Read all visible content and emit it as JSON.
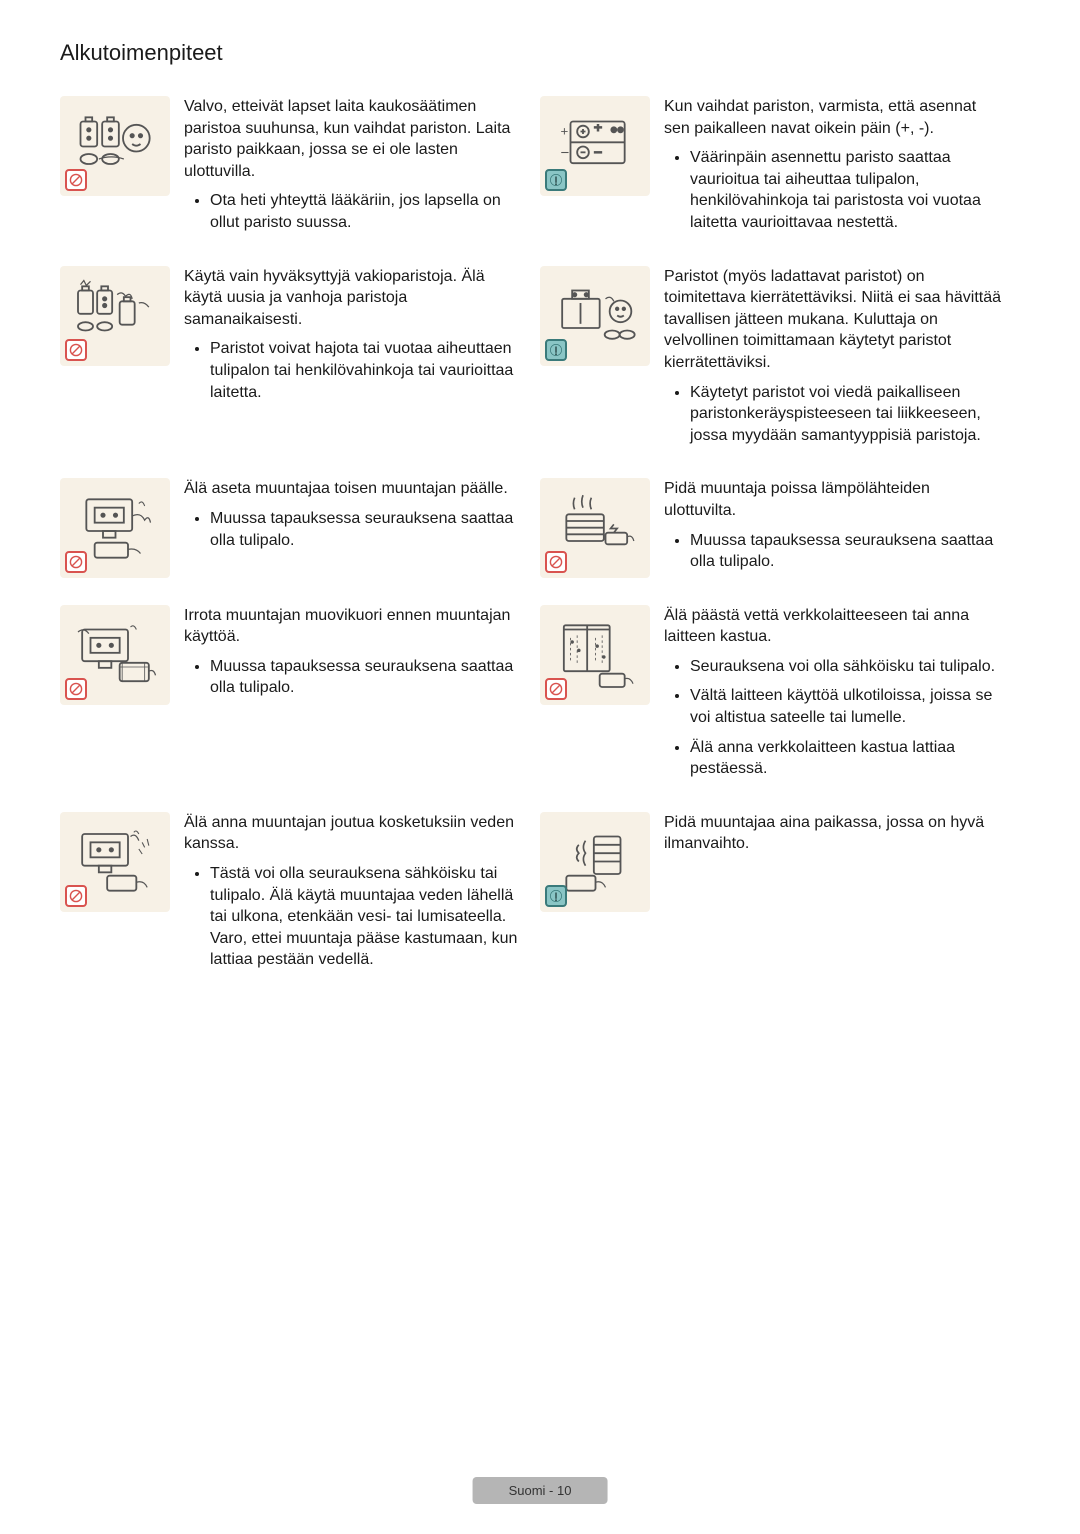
{
  "colors": {
    "background": "#ffffff",
    "icon_bg": "#f7f1e6",
    "prohibit_border": "#d9534f",
    "info_bg": "#8ac5c5",
    "info_border": "#3a7a7a",
    "text": "#1a1a1a",
    "footer_bg": "#b5b5b5",
    "svg_stroke": "#555555"
  },
  "typography": {
    "title_size": 22,
    "body_size": 16,
    "footer_size": 13,
    "line_height": 1.35
  },
  "page_title": "Alkutoimenpiteet",
  "footer": "Suomi - 10",
  "rows": [
    {
      "left": {
        "icon_type": "battery-child",
        "badge": "prohibit",
        "lead": "Valvo, etteivät lapset laita kaukosäätimen paristoa suuhunsa, kun vaihdat pariston. Laita paristo paikkaan, jossa se ei ole lasten ulottuvilla.",
        "bullets": [
          "Ota heti yhteyttä lääkäriin, jos lapsella on ollut paristo suussa."
        ]
      },
      "right": {
        "icon_type": "battery-polarity",
        "badge": "info",
        "lead": "Kun vaihdat pariston, varmista, että asennat sen paikalleen navat oikein päin (+, -).",
        "bullets": [
          "Väärinpäin asennettu paristo saattaa vaurioitua tai aiheuttaa tulipalon, henkilövahinkoja tai paristosta voi vuotaa laitetta vaurioittavaa nestettä."
        ]
      }
    },
    {
      "left": {
        "icon_type": "battery-mixed",
        "badge": "prohibit",
        "lead": "Käytä vain hyväksyttyjä vakioparistoja. Älä käytä uusia ja vanhoja paristoja samanaikaisesti.",
        "bullets": [
          "Paristot voivat hajota tai vuotaa aiheuttaen tulipalon tai henkilövahinkoja tai vaurioittaa laitetta."
        ]
      },
      "right": {
        "icon_type": "battery-recycle",
        "badge": "info",
        "lead": "Paristot (myös ladattavat paristot) on toimitettava kierrätettäviksi. Niitä ei saa hävittää tavallisen jätteen mukana. Kuluttaja on velvollinen toimittamaan käytetyt paristot kierrätettäviksi.",
        "bullets": [
          "Käytetyt paristot voi viedä paikalliseen paristonkeräyspisteeseen tai liikkeeseen, jossa myydään samantyyppisiä paristoja."
        ]
      }
    },
    {
      "left": {
        "icon_type": "adapter-stack",
        "badge": "prohibit",
        "lead": "Älä aseta muuntajaa toisen muuntajan päälle.",
        "bullets": [
          "Muussa tapauksessa seurauksena saattaa olla tulipalo."
        ]
      },
      "right": {
        "icon_type": "adapter-heat",
        "badge": "prohibit",
        "lead": "Pidä muuntaja poissa lämpölähteiden ulottuvilta.",
        "bullets": [
          "Muussa tapauksessa seurauksena saattaa olla tulipalo."
        ]
      }
    },
    {
      "left": {
        "icon_type": "adapter-cover",
        "badge": "prohibit",
        "lead": "Irrota muuntajan muovikuori ennen muuntajan käyttöä.",
        "bullets": [
          "Muussa tapauksessa seurauksena saattaa olla tulipalo."
        ]
      },
      "right": {
        "icon_type": "adapter-water-window",
        "badge": "prohibit",
        "lead": "Älä päästä vettä verkkolaitteeseen tai anna laitteen kastua.",
        "bullets": [
          "Seurauksena voi olla sähköisku tai tulipalo.",
          "Vältä laitteen käyttöä ulkotiloissa, joissa se voi altistua sateelle tai lumelle.",
          "Älä anna verkkolaitteen kastua lattiaa pestäessä."
        ]
      }
    },
    {
      "left": {
        "icon_type": "adapter-water-hand",
        "badge": "prohibit",
        "lead": "Älä anna muuntajan joutua kosketuksiin veden kanssa.",
        "bullets": [
          "Tästä voi olla seurauksena sähköisku tai tulipalo. Älä käytä muuntajaa veden lähellä tai ulkona, etenkään vesi- tai lumisateella. Varo, ettei muuntaja pääse kastumaan, kun lattiaa pestään vedellä."
        ]
      },
      "right": {
        "icon_type": "adapter-ventilation",
        "badge": "info",
        "lead": "Pidä muuntajaa aina paikassa, jossa on hyvä ilmanvaihto.",
        "bullets": []
      }
    }
  ]
}
